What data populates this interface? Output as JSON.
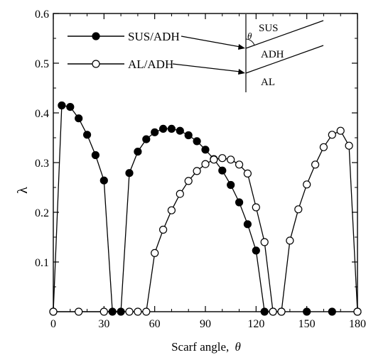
{
  "chart_data": {
    "type": "line",
    "xlabel": "Scarf angle,",
    "xlabel_symbol": "θ",
    "ylabel": "λ",
    "xlim": [
      0,
      180
    ],
    "ylim": [
      0,
      0.6
    ],
    "xticks": [
      "0",
      "30",
      "60",
      "90",
      "120",
      "150",
      "180"
    ],
    "yticks": [
      "0.1",
      "0.2",
      "0.3",
      "0.4",
      "0.5",
      "0.6"
    ],
    "legend_position": "top-left",
    "series": [
      {
        "name": "SUS/ADH",
        "marker": "filled-circle",
        "x": [
          0,
          5,
          10,
          15,
          20,
          25,
          30,
          35,
          40,
          45,
          50,
          55,
          60,
          65,
          70,
          75,
          80,
          85,
          90,
          95,
          100,
          105,
          110,
          115,
          120,
          125,
          130,
          135,
          150,
          165,
          180
        ],
        "y": [
          0,
          0.415,
          0.412,
          0.389,
          0.356,
          0.315,
          0.264,
          0,
          0,
          0.279,
          0.322,
          0.347,
          0.361,
          0.368,
          0.368,
          0.364,
          0.355,
          0.343,
          0.326,
          0.307,
          0.284,
          0.255,
          0.22,
          0.176,
          0.123,
          0,
          0,
          0,
          0,
          0,
          0
        ],
        "segments": [
          [
            0,
            6
          ],
          [
            6,
            7
          ],
          [
            7,
            8
          ],
          [
            8,
            24
          ],
          [
            24,
            25
          ]
        ]
      },
      {
        "name": "AL/ADH",
        "marker": "open-circle",
        "x": [
          0,
          15,
          30,
          45,
          50,
          55,
          60,
          65,
          70,
          75,
          80,
          85,
          90,
          95,
          100,
          105,
          110,
          115,
          120,
          125,
          130,
          135,
          140,
          145,
          150,
          155,
          160,
          165,
          170,
          175,
          180
        ],
        "y": [
          0,
          0,
          0,
          0,
          0,
          0,
          0.118,
          0.165,
          0.204,
          0.237,
          0.263,
          0.283,
          0.297,
          0.306,
          0.309,
          0.306,
          0.296,
          0.278,
          0.21,
          0.14,
          0,
          0,
          0.143,
          0.206,
          0.256,
          0.296,
          0.331,
          0.356,
          0.364,
          0.334,
          0
        ],
        "segments": [
          [
            0,
            20
          ],
          [
            20,
            21
          ],
          [
            21,
            30
          ]
        ]
      }
    ]
  },
  "inset": {
    "upper_material": "SUS",
    "middle_material": "ADH",
    "lower_material": "AL",
    "angle_symbol": "θ"
  },
  "colors": {
    "line": "#000000",
    "open_fill": "#ffffff"
  }
}
